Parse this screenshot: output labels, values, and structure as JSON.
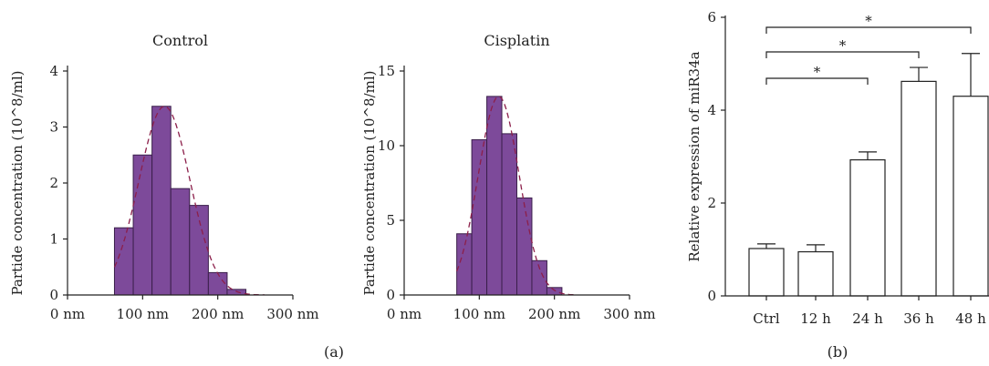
{
  "panel_labels": {
    "a": "(a)",
    "b": "(b)"
  },
  "colors": {
    "hist_bar": "#7d4a9a",
    "hist_bar_edge": "#3a1f4a",
    "curve": "#8c1f4a",
    "expr_bar": "#ffffff"
  },
  "chart_data": [
    {
      "type": "bar",
      "title": "Control",
      "xlabel": "",
      "ylabel": "Partide concentration (10^8/ml)",
      "x_tick_labels": [
        "0 nm",
        "100 nm",
        "200 nm",
        "300 nm"
      ],
      "xlim": [
        0,
        300
      ],
      "ylim": [
        0,
        4
      ],
      "y_ticks": [
        0,
        1,
        2,
        3,
        4
      ],
      "bin_width": 25,
      "bin_starts": [
        62.5,
        87.5,
        112.5,
        137.5,
        162.5,
        187.5,
        212.5,
        237.5
      ],
      "values": [
        1.2,
        2.5,
        3.37,
        1.9,
        1.6,
        0.4,
        0.1,
        0
      ],
      "fit_curve": "dashed gaussian",
      "grid": false
    },
    {
      "type": "bar",
      "title": "Cisplatin",
      "xlabel": "",
      "ylabel": "Partide concentration (10^8/ml)",
      "x_tick_labels": [
        "0 nm",
        "100 nm",
        "200 nm",
        "300 nm"
      ],
      "xlim": [
        0,
        300
      ],
      "ylim": [
        0,
        15
      ],
      "y_ticks": [
        0,
        5,
        10,
        15
      ],
      "bin_width": 20,
      "bin_starts": [
        70,
        90,
        110,
        130,
        150,
        170,
        190,
        210
      ],
      "values": [
        4.1,
        10.4,
        13.3,
        10.8,
        6.5,
        2.3,
        0.5,
        0
      ],
      "fit_curve": "dashed gaussian",
      "grid": false
    },
    {
      "type": "bar",
      "title": "",
      "xlabel": "",
      "ylabel": "Relative expression of miR34a",
      "categories": [
        "Ctrl",
        "12 h",
        "24 h",
        "36 h",
        "48 h"
      ],
      "values": [
        1.02,
        0.95,
        2.93,
        4.62,
        4.3
      ],
      "errors": [
        0.1,
        0.15,
        0.17,
        0.3,
        0.92
      ],
      "ylim": [
        0,
        6
      ],
      "y_ticks": [
        0,
        2,
        4,
        6
      ],
      "significance": [
        {
          "from": "Ctrl",
          "to": "24 h",
          "label": "*"
        },
        {
          "from": "Ctrl",
          "to": "36 h",
          "label": "*"
        },
        {
          "from": "Ctrl",
          "to": "48 h",
          "label": "*"
        }
      ],
      "grid": false
    }
  ]
}
